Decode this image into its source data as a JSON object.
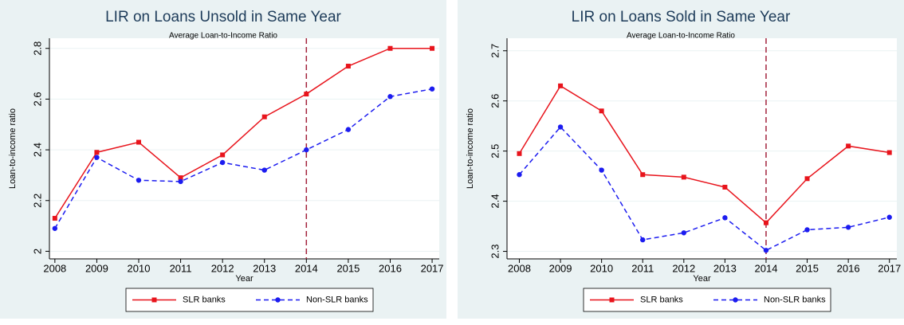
{
  "chart_data": [
    {
      "type": "line",
      "title": "LIR on Loans Unsold in Same Year",
      "subtitle": "Average Loan-to-Income Ratio",
      "x_label": "Year",
      "y_label": "Loan-to-income ratio",
      "x": [
        2008,
        2009,
        2010,
        2011,
        2012,
        2013,
        2014,
        2015,
        2016,
        2017
      ],
      "series": [
        {
          "name": "SLR banks",
          "color": "#e8141c",
          "line_style": "solid",
          "marker": "square",
          "values": [
            2.13,
            2.39,
            2.43,
            2.29,
            2.38,
            2.53,
            2.62,
            2.73,
            2.8,
            2.8
          ]
        },
        {
          "name": "Non-SLR banks",
          "color": "#1c1cf0",
          "line_style": "dash",
          "marker": "circle",
          "values": [
            2.09,
            2.37,
            2.28,
            2.275,
            2.35,
            2.32,
            2.4,
            2.48,
            2.61,
            2.64
          ]
        }
      ],
      "reference_line": {
        "x": 2014,
        "color": "#a3233c"
      },
      "xlim": [
        2007.87,
        2017.17
      ],
      "ylim": [
        1.97,
        2.84
      ],
      "xticks": [
        2008,
        2009,
        2010,
        2011,
        2012,
        2013,
        2014,
        2015,
        2016,
        2017
      ],
      "yticks": [
        2,
        2.2,
        2.4,
        2.6,
        2.8
      ],
      "grid": true,
      "legend": "bottom"
    },
    {
      "type": "line",
      "title": "LIR on Loans Sold in Same Year",
      "subtitle": "Average Loan-to-Income Ratio",
      "x_label": "Year",
      "y_label": "Loan-to-income ratio",
      "x": [
        2008,
        2009,
        2010,
        2011,
        2012,
        2013,
        2014,
        2015,
        2016,
        2017
      ],
      "series": [
        {
          "name": "SLR banks",
          "color": "#e8141c",
          "line_style": "solid",
          "marker": "square",
          "values": [
            2.495,
            2.63,
            2.58,
            2.453,
            2.448,
            2.428,
            2.357,
            2.445,
            2.51,
            2.497
          ]
        },
        {
          "name": "Non-SLR banks",
          "color": "#1c1cf0",
          "line_style": "dash",
          "marker": "circle",
          "values": [
            2.453,
            2.548,
            2.462,
            2.323,
            2.337,
            2.367,
            2.302,
            2.343,
            2.348,
            2.368
          ]
        }
      ],
      "reference_line": {
        "x": 2014,
        "color": "#a3233c"
      },
      "xlim": [
        2007.7,
        2017.18
      ],
      "ylim": [
        2.285,
        2.725
      ],
      "xticks": [
        2008,
        2009,
        2010,
        2011,
        2012,
        2013,
        2014,
        2015,
        2016,
        2017
      ],
      "yticks": [
        2.3,
        2.4,
        2.5,
        2.6,
        2.7
      ],
      "grid": true,
      "legend": "bottom"
    }
  ]
}
